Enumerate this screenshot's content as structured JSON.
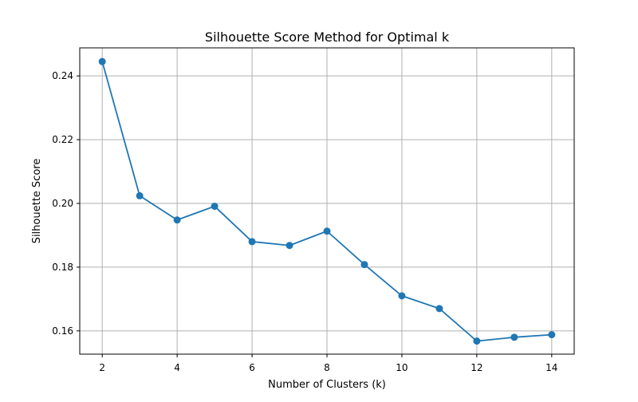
{
  "chart_data": {
    "type": "line",
    "title": "Silhouette Score Method for Optimal k",
    "xlabel": "Number of Clusters (k)",
    "ylabel": "Silhouette Score",
    "x": [
      2,
      3,
      4,
      5,
      6,
      7,
      8,
      9,
      10,
      11,
      12,
      13,
      14
    ],
    "series": [
      {
        "values": [
          0.2445,
          0.2024,
          0.1948,
          0.1991,
          0.188,
          0.1868,
          0.1913,
          0.1808,
          0.171,
          0.167,
          0.1568,
          0.158,
          0.1588
        ],
        "color": "#1f77b4",
        "marker": "circle"
      }
    ],
    "xlim": [
      1.4,
      14.6
    ],
    "ylim": [
      0.1527,
      0.2488
    ],
    "xticks": [
      2,
      4,
      6,
      8,
      10,
      12,
      14
    ],
    "xtick_labels": [
      "2",
      "4",
      "6",
      "8",
      "10",
      "12",
      "14"
    ],
    "yticks": [
      0.16,
      0.18,
      0.2,
      0.22,
      0.24
    ],
    "ytick_labels": [
      "0.16",
      "0.18",
      "0.20",
      "0.22",
      "0.24"
    ],
    "grid": true,
    "grid_color": "#b0b0b0",
    "legend": false
  }
}
